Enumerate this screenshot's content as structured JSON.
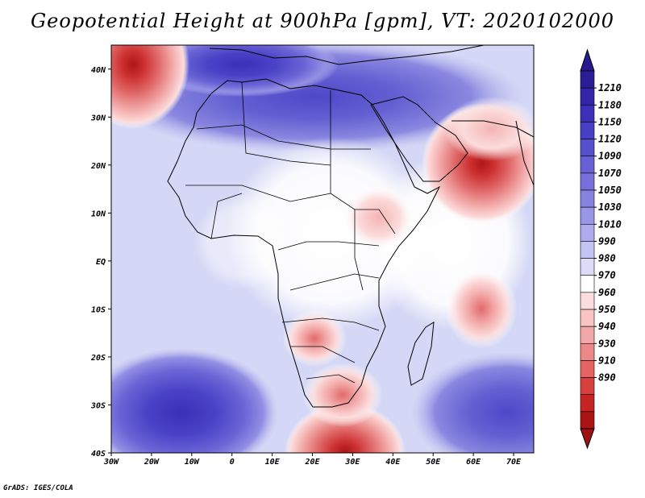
{
  "title": "Geopotential Height at 900hPa [gpm], VT: 2020102000",
  "footer": "GrADS: IGES/COLA",
  "map": {
    "variable": "Geopotential Height",
    "level": "900hPa",
    "units": "gpm",
    "valid_time": "2020102000",
    "lon_range": [
      -30,
      75
    ],
    "lat_range": [
      -40,
      45
    ],
    "lon_ticks": [
      {
        "value": -30,
        "label": "30W"
      },
      {
        "value": -20,
        "label": "20W"
      },
      {
        "value": -10,
        "label": "10W"
      },
      {
        "value": 0,
        "label": "0"
      },
      {
        "value": 10,
        "label": "10E"
      },
      {
        "value": 20,
        "label": "20E"
      },
      {
        "value": 30,
        "label": "30E"
      },
      {
        "value": 40,
        "label": "40E"
      },
      {
        "value": 50,
        "label": "50E"
      },
      {
        "value": 60,
        "label": "60E"
      },
      {
        "value": 70,
        "label": "70E"
      }
    ],
    "lat_ticks": [
      {
        "value": 40,
        "label": "40N"
      },
      {
        "value": 30,
        "label": "30N"
      },
      {
        "value": 20,
        "label": "20N"
      },
      {
        "value": 10,
        "label": "10N"
      },
      {
        "value": 0,
        "label": "EQ"
      },
      {
        "value": -10,
        "label": "10S"
      },
      {
        "value": -20,
        "label": "20S"
      },
      {
        "value": -30,
        "label": "30S"
      },
      {
        "value": -40,
        "label": "40S"
      }
    ],
    "colors": {
      "background": "#d9dcf6",
      "ocean_field": "#d4d7f5",
      "land_field": "#ffffff"
    },
    "features": [
      {
        "name": "high-atlantic-south",
        "lon": -15,
        "lat": -31,
        "value": 1180
      },
      {
        "name": "high-indian-south",
        "lon": 70,
        "lat": -31,
        "value": 1130
      },
      {
        "name": "high-mediterranean",
        "lon": 20,
        "lat": 38,
        "value": 1090
      },
      {
        "name": "low-arabian-sea",
        "lon": 61.5,
        "lat": 20,
        "value": 890
      },
      {
        "name": "low-north-atlantic",
        "lon": -23,
        "lat": 42,
        "value": 890
      },
      {
        "name": "low-southern-africa",
        "lon": 28,
        "lat": -40,
        "value": 900
      },
      {
        "name": "low-indian-ocean",
        "lon": 61.5,
        "lat": -11,
        "value": 950
      }
    ]
  },
  "colorbar": {
    "labels": [
      "1210",
      "1180",
      "1150",
      "1120",
      "1090",
      "1070",
      "1050",
      "1030",
      "1010",
      "990",
      "980",
      "970",
      "960",
      "950",
      "940",
      "930",
      "910",
      "890"
    ],
    "colors": [
      "#2a1e96",
      "#3325a8",
      "#3c30b8",
      "#4840c4",
      "#5650cc",
      "#6660d4",
      "#7670da",
      "#8682e0",
      "#9896e6",
      "#aeaced",
      "#c4c4f2",
      "#dcdcf8",
      "#ffffff",
      "#fcdcdc",
      "#f8c4c4",
      "#f2a8a8",
      "#ec8888",
      "#e46464",
      "#d84040",
      "#c42424",
      "#aa1414"
    ],
    "top_arrow_color": "#281a8c",
    "bottom_arrow_color": "#a01010"
  }
}
